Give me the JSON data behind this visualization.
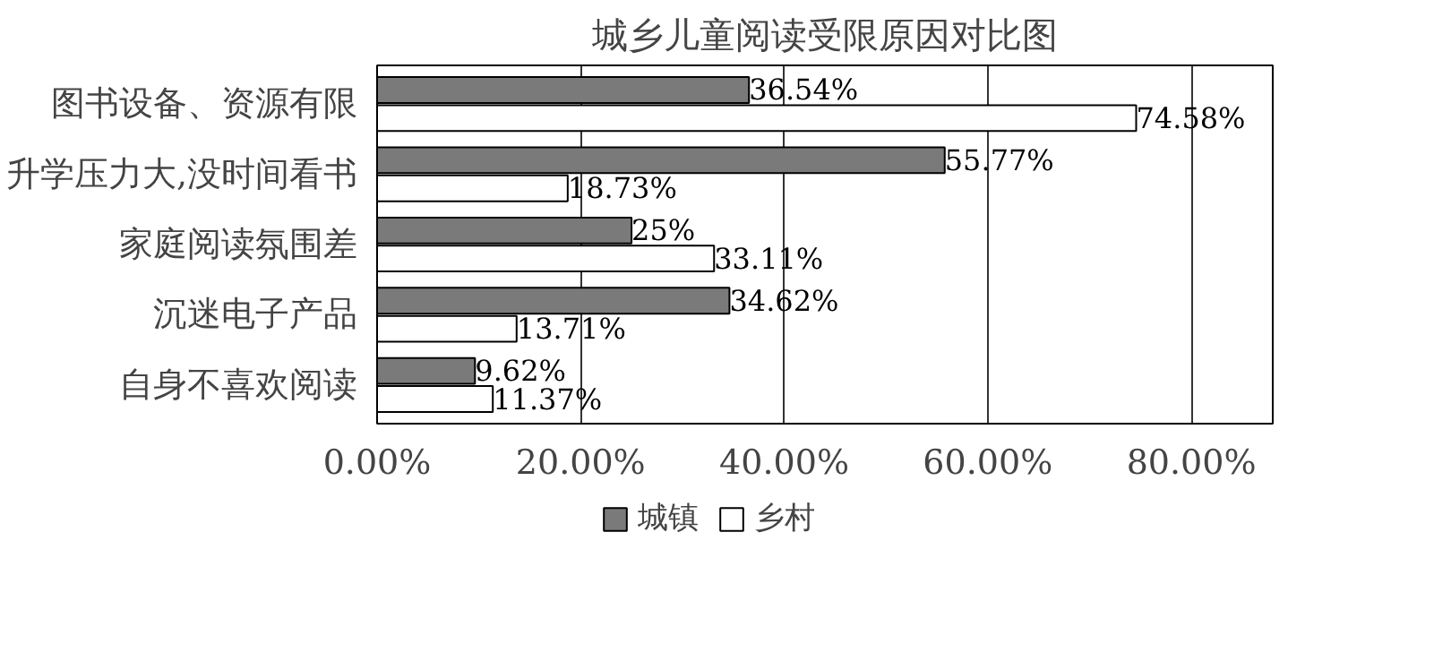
{
  "chart_data": {
    "type": "bar",
    "orientation": "horizontal",
    "title": "城乡儿童阅读受限原因对比图",
    "categories": [
      "图书设备、资源有限",
      "升学压力大,没时间看书",
      "家庭阅读氛围差",
      "沉迷电子产品",
      "自身不喜欢阅读"
    ],
    "series": [
      {
        "name": "城镇",
        "color": "#7a7a7a",
        "values": [
          36.54,
          55.77,
          25,
          34.62,
          9.62
        ],
        "value_labels": [
          "36.54%",
          "55.77%",
          "25%",
          "34.62%",
          "9.62%"
        ]
      },
      {
        "name": "乡村",
        "color": "#ffffff",
        "values": [
          74.58,
          18.73,
          33.11,
          13.71,
          11.37
        ],
        "value_labels": [
          "74.58%",
          "18.73%",
          "33.11%",
          "13.71%",
          "11.37%"
        ]
      }
    ],
    "xlim": [
      0,
      88
    ],
    "xticks": [
      {
        "value": 0,
        "label": "0.00%"
      },
      {
        "value": 20,
        "label": "20.00%"
      },
      {
        "value": 40,
        "label": "40.00%"
      },
      {
        "value": 60,
        "label": "60.00%"
      },
      {
        "value": 80,
        "label": "80.00%"
      }
    ],
    "grid": "x",
    "legend": "bottom"
  }
}
